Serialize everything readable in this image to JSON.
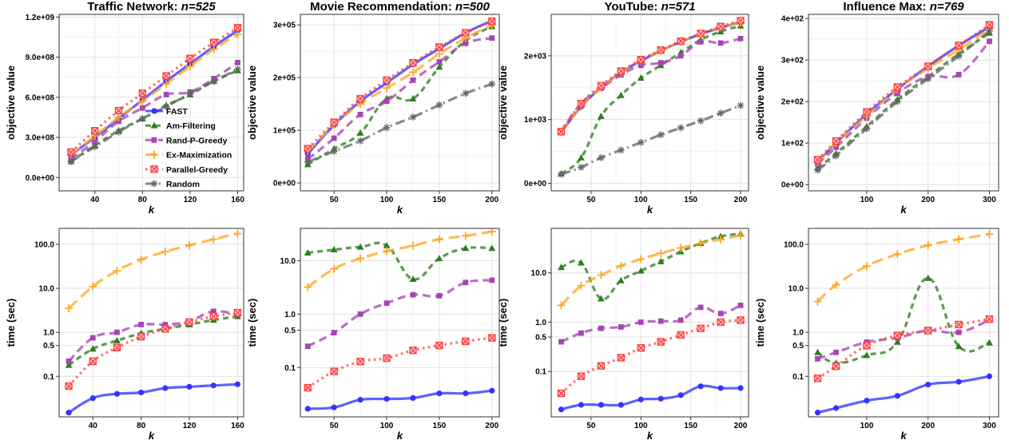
{
  "colors": {
    "FAST": "#3333ff",
    "Am-Filtering": "#2d7f1e",
    "Rand-P-Greedy": "#a744b5",
    "Ex-Maximization": "#ffa726",
    "Parallel-Greedy": "#ff4040",
    "Random": "#666666"
  },
  "legend": {
    "placement": "inside-top-left-first-panel",
    "entries": [
      {
        "name": "FAST",
        "icon": "filled-circle"
      },
      {
        "name": "Am-Filtering",
        "icon": "filled-triangle"
      },
      {
        "name": "Rand-P-Greedy",
        "icon": "filled-square"
      },
      {
        "name": "Ex-Maximization",
        "icon": "plus"
      },
      {
        "name": "Parallel-Greedy",
        "icon": "boxed-x"
      },
      {
        "name": "Random",
        "icon": "asterisk"
      }
    ]
  },
  "chart_data": [
    {
      "type": "line",
      "row": "top",
      "panel_title": "Traffic Network: ",
      "panel_n": "n=525",
      "xlabel": "k",
      "ylabel": "objective value",
      "xlim": [
        10,
        165
      ],
      "ylim": [
        -100000000.0,
        1220000000.0
      ],
      "xticks": [
        40,
        80,
        120,
        160
      ],
      "xtick_labels": [
        "40",
        "80",
        "120",
        "160"
      ],
      "yticks": [
        0,
        300000000,
        600000000,
        900000000,
        1200000000
      ],
      "ytick_labels": [
        "0.0e+00",
        "3.0e+08",
        "6.0e+08",
        "9.0e+08",
        "1.2e+09"
      ],
      "y_log": false,
      "grid": true,
      "x": [
        20,
        40,
        60,
        80,
        100,
        120,
        140,
        160
      ],
      "series": [
        {
          "name": "FAST",
          "values": [
            170000000,
            300000000,
            440000000,
            580000000,
            720000000,
            850000000,
            980000000,
            1100000000
          ]
        },
        {
          "name": "Am-Filtering",
          "values": [
            120000000,
            240000000,
            350000000,
            440000000,
            540000000,
            620000000,
            720000000,
            800000000
          ]
        },
        {
          "name": "Rand-P-Greedy",
          "values": [
            140000000,
            270000000,
            420000000,
            520000000,
            620000000,
            640000000,
            740000000,
            860000000
          ]
        },
        {
          "name": "Ex-Maximization",
          "values": [
            170000000,
            310000000,
            450000000,
            570000000,
            700000000,
            830000000,
            960000000,
            1070000000
          ]
        },
        {
          "name": "Parallel-Greedy",
          "values": [
            190000000,
            350000000,
            500000000,
            630000000,
            760000000,
            890000000,
            1010000000,
            1120000000
          ]
        },
        {
          "name": "Random",
          "values": [
            120000000,
            230000000,
            340000000,
            440000000,
            530000000,
            630000000,
            720000000,
            810000000
          ]
        }
      ]
    },
    {
      "type": "line",
      "row": "top",
      "panel_title": "Movie Recommendation: ",
      "panel_n": "n=500",
      "xlabel": "k",
      "ylabel": "objective value",
      "xlim": [
        18,
        207
      ],
      "ylim": [
        -15000,
        320000
      ],
      "xticks": [
        50,
        100,
        150,
        200
      ],
      "xtick_labels": [
        "50",
        "100",
        "150",
        "200"
      ],
      "yticks": [
        0,
        100000,
        200000,
        300000
      ],
      "ytick_labels": [
        "0e+00",
        "1e+05",
        "2e+05",
        "3e+05"
      ],
      "y_log": false,
      "grid": true,
      "x": [
        25,
        50,
        75,
        100,
        125,
        150,
        175,
        200
      ],
      "series": [
        {
          "name": "FAST",
          "values": [
            55000,
            110000,
            155000,
            190000,
            225000,
            255000,
            285000,
            308000
          ]
        },
        {
          "name": "Am-Filtering",
          "values": [
            35000,
            65000,
            95000,
            160000,
            160000,
            220000,
            270000,
            297000
          ]
        },
        {
          "name": "Rand-P-Greedy",
          "values": [
            45000,
            85000,
            130000,
            155000,
            195000,
            230000,
            265000,
            275000
          ]
        },
        {
          "name": "Ex-Maximization",
          "values": [
            60000,
            110000,
            150000,
            180000,
            210000,
            245000,
            275000,
            300000
          ]
        },
        {
          "name": "Parallel-Greedy",
          "values": [
            65000,
            115000,
            160000,
            195000,
            228000,
            258000,
            285000,
            307000
          ]
        },
        {
          "name": "Random",
          "values": [
            40000,
            60000,
            80000,
            105000,
            125000,
            148000,
            170000,
            188000
          ]
        }
      ]
    },
    {
      "type": "line",
      "row": "top",
      "panel_title": "YouTube: ",
      "panel_n": "n=571",
      "xlabel": "k",
      "ylabel": "objective value",
      "xlim": [
        10,
        208
      ],
      "ylim": [
        -120,
        2650
      ],
      "xticks": [
        50,
        100,
        150,
        200
      ],
      "xtick_labels": [
        "50",
        "100",
        "150",
        "200"
      ],
      "yticks": [
        0,
        1000,
        2000
      ],
      "ytick_labels": [
        "0e+00",
        "1e+03",
        "2e+03"
      ],
      "y_log": false,
      "grid": true,
      "x": [
        20,
        40,
        60,
        80,
        100,
        120,
        140,
        160,
        180,
        200
      ],
      "series": [
        {
          "name": "FAST",
          "values": [
            800,
            1200,
            1500,
            1740,
            1920,
            2080,
            2220,
            2340,
            2440,
            2530
          ]
        },
        {
          "name": "Am-Filtering",
          "values": [
            150,
            400,
            1050,
            1380,
            1650,
            1850,
            2050,
            2250,
            2380,
            2470
          ]
        },
        {
          "name": "Rand-P-Greedy",
          "values": [
            820,
            1250,
            1490,
            1700,
            1850,
            1890,
            2000,
            2220,
            2200,
            2270
          ]
        },
        {
          "name": "Ex-Maximization",
          "values": [
            800,
            1200,
            1500,
            1740,
            1930,
            2080,
            2220,
            2340,
            2450,
            2520
          ]
        },
        {
          "name": "Parallel-Greedy",
          "values": [
            810,
            1250,
            1530,
            1760,
            1940,
            2090,
            2230,
            2350,
            2460,
            2550
          ]
        },
        {
          "name": "Random",
          "values": [
            140,
            250,
            400,
            520,
            640,
            760,
            870,
            980,
            1100,
            1220
          ]
        }
      ]
    },
    {
      "type": "line",
      "row": "top",
      "panel_title": "Influence Max: ",
      "panel_n": "n=769",
      "xlabel": "k",
      "ylabel": "objective value",
      "xlim": [
        5,
        315
      ],
      "ylim": [
        -15,
        410
      ],
      "xticks": [
        100,
        200,
        300
      ],
      "xtick_labels": [
        "100",
        "200",
        "300"
      ],
      "yticks": [
        0,
        100,
        200,
        300,
        400
      ],
      "ytick_labels": [
        "0e+00",
        "1e+02",
        "2e+02",
        "3e+02",
        "4e+02"
      ],
      "y_log": false,
      "grid": true,
      "x": [
        20,
        50,
        100,
        150,
        200,
        250,
        300
      ],
      "series": [
        {
          "name": "FAST",
          "values": [
            55,
            100,
            170,
            230,
            285,
            335,
            380
          ]
        },
        {
          "name": "Am-Filtering",
          "values": [
            40,
            75,
            140,
            205,
            260,
            315,
            365
          ]
        },
        {
          "name": "Rand-P-Greedy",
          "values": [
            50,
            90,
            160,
            220,
            260,
            265,
            345
          ]
        },
        {
          "name": "Ex-Maximization",
          "values": [
            55,
            100,
            165,
            230,
            280,
            325,
            375
          ]
        },
        {
          "name": "Parallel-Greedy",
          "values": [
            60,
            105,
            175,
            235,
            285,
            335,
            385
          ]
        },
        {
          "name": "Random",
          "values": [
            35,
            70,
            135,
            200,
            255,
            310,
            370
          ]
        }
      ]
    },
    {
      "type": "line",
      "row": "bottom",
      "panel_title": "",
      "panel_n": "",
      "xlabel": "k",
      "ylabel": "time (sec)",
      "xlim": [
        12,
        165
      ],
      "ylim": [
        0.012,
        230
      ],
      "xticks": [
        40,
        80,
        120,
        160
      ],
      "xtick_labels": [
        "40",
        "80",
        "120",
        "160"
      ],
      "yticks": [
        0.1,
        0.5,
        1,
        10,
        100
      ],
      "ytick_labels": [
        "0.1",
        "0.5",
        "1.0",
        "10.0",
        "100.0"
      ],
      "y_log": true,
      "grid": true,
      "x": [
        20,
        40,
        60,
        80,
        100,
        120,
        140,
        160
      ],
      "series": [
        {
          "name": "FAST",
          "values": [
            0.015,
            0.032,
            0.04,
            0.043,
            0.054,
            0.058,
            0.062,
            0.066
          ]
        },
        {
          "name": "Am-Filtering",
          "values": [
            0.18,
            0.42,
            0.65,
            0.95,
            1.2,
            1.5,
            1.9,
            2.3
          ]
        },
        {
          "name": "Rand-P-Greedy",
          "values": [
            0.22,
            0.75,
            1.0,
            1.5,
            1.5,
            1.8,
            3.0,
            2.5
          ]
        },
        {
          "name": "Ex-Maximization",
          "values": [
            3.5,
            11.0,
            25.0,
            45.0,
            68.0,
            95.0,
            130.0,
            175.0
          ]
        },
        {
          "name": "Parallel-Greedy",
          "values": [
            0.06,
            0.22,
            0.45,
            0.8,
            1.2,
            1.7,
            2.3,
            2.8
          ]
        }
      ]
    },
    {
      "type": "line",
      "row": "bottom",
      "panel_title": "",
      "panel_n": "",
      "xlabel": "k",
      "ylabel": "time (sec)",
      "xlim": [
        18,
        207
      ],
      "ylim": [
        0.012,
        40
      ],
      "xticks": [
        50,
        100,
        150,
        200
      ],
      "xtick_labels": [
        "50",
        "100",
        "150",
        "200"
      ],
      "yticks": [
        0.1,
        0.5,
        1,
        10
      ],
      "ytick_labels": [
        "0.1",
        "0.5",
        "1.0",
        "10.0"
      ],
      "y_log": true,
      "grid": true,
      "x": [
        25,
        50,
        75,
        100,
        125,
        150,
        175,
        200
      ],
      "series": [
        {
          "name": "FAST",
          "values": [
            0.017,
            0.018,
            0.025,
            0.026,
            0.027,
            0.033,
            0.033,
            0.037
          ]
        },
        {
          "name": "Am-Filtering",
          "values": [
            14.0,
            16.0,
            18.0,
            19.0,
            4.5,
            11.0,
            17.0,
            17.0
          ]
        },
        {
          "name": "Rand-P-Greedy",
          "values": [
            0.25,
            0.45,
            1.0,
            1.6,
            2.3,
            2.2,
            3.9,
            4.3
          ]
        },
        {
          "name": "Ex-Maximization",
          "values": [
            3.2,
            7.0,
            11.0,
            15.0,
            19.0,
            25.0,
            29.0,
            35.0
          ]
        },
        {
          "name": "Parallel-Greedy",
          "values": [
            0.042,
            0.085,
            0.13,
            0.15,
            0.21,
            0.26,
            0.31,
            0.36
          ]
        }
      ]
    },
    {
      "type": "line",
      "row": "bottom",
      "panel_title": "",
      "panel_n": "",
      "xlabel": "k",
      "ylabel": "time (sec)",
      "xlim": [
        10,
        208
      ],
      "ylim": [
        0.012,
        80
      ],
      "xticks": [
        50,
        100,
        150,
        200
      ],
      "xtick_labels": [
        "50",
        "100",
        "150",
        "200"
      ],
      "yticks": [
        0.1,
        0.5,
        1,
        10
      ],
      "ytick_labels": [
        "0.1",
        "0.5",
        "1.0",
        "10.0"
      ],
      "y_log": true,
      "grid": true,
      "x": [
        20,
        40,
        60,
        80,
        100,
        120,
        140,
        160,
        180,
        200
      ],
      "series": [
        {
          "name": "FAST",
          "values": [
            0.017,
            0.021,
            0.021,
            0.021,
            0.027,
            0.028,
            0.033,
            0.05,
            0.046,
            0.046
          ]
        },
        {
          "name": "Am-Filtering",
          "values": [
            13.0,
            16.0,
            3.0,
            7.0,
            11.0,
            17.0,
            27.0,
            40.0,
            55.0,
            62.0
          ]
        },
        {
          "name": "Rand-P-Greedy",
          "values": [
            0.4,
            0.6,
            0.75,
            0.8,
            1.0,
            1.05,
            1.1,
            2.0,
            1.5,
            2.2
          ]
        },
        {
          "name": "Ex-Maximization",
          "values": [
            2.2,
            5.5,
            9.0,
            14.0,
            19.0,
            25.0,
            32.0,
            40.0,
            48.0,
            58.0
          ]
        },
        {
          "name": "Parallel-Greedy",
          "values": [
            0.036,
            0.08,
            0.13,
            0.19,
            0.3,
            0.4,
            0.55,
            0.75,
            1.0,
            1.1
          ]
        }
      ]
    },
    {
      "type": "line",
      "row": "bottom",
      "panel_title": "",
      "panel_n": "",
      "xlabel": "k",
      "ylabel": "time (sec)",
      "xlim": [
        5,
        315
      ],
      "ylim": [
        0.012,
        230
      ],
      "xticks": [
        100,
        200,
        300
      ],
      "xtick_labels": [
        "100",
        "200",
        "300"
      ],
      "yticks": [
        0.1,
        0.5,
        1,
        10,
        100
      ],
      "ytick_labels": [
        "0.1",
        "0.5",
        "1.0",
        "10.0",
        "100.0"
      ],
      "y_log": true,
      "grid": true,
      "x": [
        20,
        50,
        100,
        150,
        200,
        250,
        300
      ],
      "series": [
        {
          "name": "FAST",
          "values": [
            0.015,
            0.019,
            0.028,
            0.036,
            0.065,
            0.075,
            0.1
          ]
        },
        {
          "name": "Am-Filtering",
          "values": [
            0.35,
            0.2,
            0.3,
            0.6,
            17.0,
            0.48,
            0.58
          ]
        },
        {
          "name": "Rand-P-Greedy",
          "values": [
            0.25,
            0.35,
            0.6,
            0.75,
            1.1,
            1.0,
            1.9
          ]
        },
        {
          "name": "Ex-Maximization",
          "values": [
            5.0,
            12.0,
            32.0,
            60.0,
            95.0,
            130.0,
            170.0
          ]
        },
        {
          "name": "Parallel-Greedy",
          "values": [
            0.09,
            0.17,
            0.5,
            0.85,
            1.1,
            1.5,
            2.0
          ]
        }
      ]
    }
  ]
}
